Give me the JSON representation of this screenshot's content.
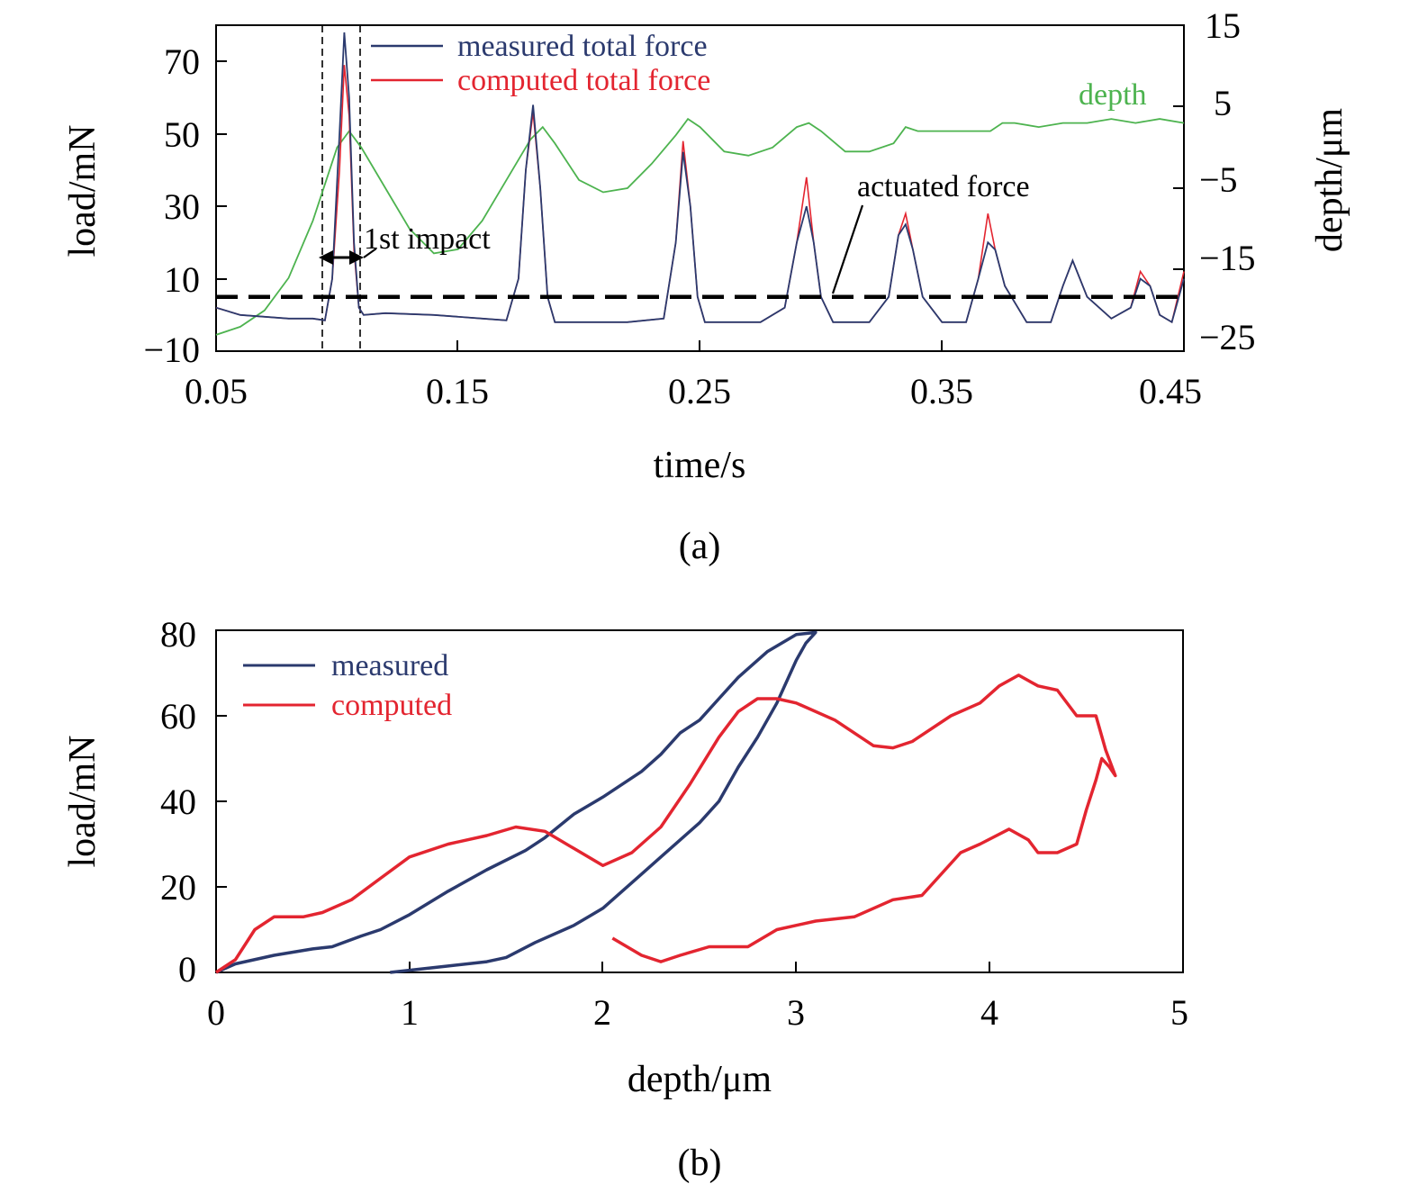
{
  "chart_data": [
    {
      "panel": "(a)",
      "type": "line",
      "xlabel": "time/s",
      "ylabel": "load/mN",
      "ylabel_right": "depth/μm",
      "xlim": [
        0.05,
        0.45
      ],
      "ylim": [
        -10,
        80
      ],
      "ylim_right": [
        -25,
        15
      ],
      "xticks": [
        0.05,
        0.15,
        0.25,
        0.35,
        0.45
      ],
      "xtick_labels": [
        "0.05",
        "0.15",
        "0.25",
        "0.35",
        "0.45"
      ],
      "yticks": [
        -10,
        10,
        30,
        50,
        70
      ],
      "ytick_labels": [
        "−10",
        "10",
        "30",
        "50",
        "70"
      ],
      "yticks_right": [
        -25,
        -15,
        -5,
        5,
        15
      ],
      "ytick_labels_right": [
        "−25",
        "−15",
        "−5",
        "5",
        "15"
      ],
      "legend_position": "top-center",
      "series": [
        {
          "name": "measured total force",
          "color": "#2b3a6e",
          "axis": "left",
          "x": [
            0.05,
            0.06,
            0.07,
            0.08,
            0.09,
            0.095,
            0.098,
            0.101,
            0.103,
            0.105,
            0.107,
            0.109,
            0.111,
            0.12,
            0.14,
            0.16,
            0.17,
            0.175,
            0.178,
            0.181,
            0.184,
            0.187,
            0.19,
            0.2,
            0.22,
            0.235,
            0.24,
            0.243,
            0.246,
            0.249,
            0.252,
            0.26,
            0.275,
            0.285,
            0.29,
            0.294,
            0.297,
            0.3,
            0.305,
            0.31,
            0.32,
            0.328,
            0.332,
            0.335,
            0.338,
            0.342,
            0.35,
            0.36,
            0.365,
            0.369,
            0.372,
            0.376,
            0.385,
            0.395,
            0.4,
            0.404,
            0.41,
            0.42,
            0.428,
            0.432,
            0.436,
            0.44,
            0.445,
            0.45
          ],
          "y": [
            2,
            0,
            -0.5,
            -1,
            -1,
            -1.5,
            10,
            50,
            78,
            60,
            20,
            2,
            0,
            0.5,
            0,
            -1,
            -1.5,
            10,
            40,
            58,
            35,
            5,
            -2,
            -2,
            -2,
            -1,
            20,
            45,
            30,
            5,
            -2,
            -2,
            -2,
            2,
            20,
            30,
            20,
            5,
            -2,
            -2,
            -2,
            5,
            22,
            25,
            18,
            5,
            -2,
            -2,
            10,
            20,
            18,
            8,
            -2,
            -2,
            8,
            15,
            5,
            -1,
            2,
            10,
            8,
            0,
            -2,
            10
          ]
        },
        {
          "name": "computed total force",
          "color": "#e32530",
          "axis": "left",
          "x": [
            0.05,
            0.06,
            0.07,
            0.08,
            0.09,
            0.095,
            0.098,
            0.101,
            0.103,
            0.105,
            0.107,
            0.109,
            0.111,
            0.12,
            0.14,
            0.16,
            0.17,
            0.175,
            0.178,
            0.181,
            0.184,
            0.187,
            0.19,
            0.2,
            0.22,
            0.235,
            0.24,
            0.243,
            0.246,
            0.249,
            0.252,
            0.26,
            0.275,
            0.285,
            0.29,
            0.294,
            0.297,
            0.3,
            0.305,
            0.31,
            0.32,
            0.328,
            0.332,
            0.335,
            0.338,
            0.342,
            0.35,
            0.36,
            0.365,
            0.369,
            0.372,
            0.376,
            0.385,
            0.395,
            0.4,
            0.404,
            0.41,
            0.42,
            0.428,
            0.432,
            0.436,
            0.44,
            0.445,
            0.45
          ],
          "y": [
            2,
            0,
            -0.5,
            -1,
            -1,
            -1.5,
            10,
            40,
            69,
            55,
            18,
            2,
            0,
            0.5,
            0,
            -1,
            -1.5,
            10,
            40,
            56,
            35,
            5,
            -2,
            -2,
            -2,
            -1,
            20,
            48,
            30,
            5,
            -2,
            -2,
            -2,
            2,
            20,
            38,
            20,
            5,
            -2,
            -2,
            -2,
            5,
            22,
            28,
            18,
            5,
            -2,
            -2,
            10,
            28,
            18,
            8,
            -2,
            -2,
            8,
            15,
            5,
            -1,
            2,
            12,
            8,
            0,
            -2,
            12
          ]
        },
        {
          "name": "depth",
          "color": "#4db34f",
          "axis": "right",
          "x": [
            0.05,
            0.06,
            0.07,
            0.08,
            0.09,
            0.1,
            0.105,
            0.11,
            0.12,
            0.13,
            0.14,
            0.15,
            0.16,
            0.17,
            0.18,
            0.185,
            0.19,
            0.2,
            0.21,
            0.22,
            0.23,
            0.24,
            0.245,
            0.25,
            0.26,
            0.27,
            0.28,
            0.29,
            0.295,
            0.3,
            0.31,
            0.32,
            0.33,
            0.335,
            0.34,
            0.35,
            0.36,
            0.37,
            0.375,
            0.38,
            0.39,
            0.4,
            0.41,
            0.42,
            0.43,
            0.44,
            0.45
          ],
          "y": [
            -23,
            -22,
            -20,
            -16,
            -9,
            0,
            2,
            0,
            -5,
            -10,
            -13,
            -12.5,
            -9,
            -4,
            1,
            2.5,
            0.5,
            -4,
            -5.5,
            -5,
            -2,
            1.5,
            3.5,
            2.5,
            -0.5,
            -1,
            0,
            2.5,
            3,
            2,
            -0.5,
            -0.5,
            0.5,
            2.5,
            2,
            2,
            2,
            2,
            3,
            3,
            2.5,
            3,
            3,
            3.5,
            3,
            3.5,
            3
          ]
        },
        {
          "name": "actuated force",
          "color": "#000000",
          "axis": "left",
          "style": "dashed",
          "x": [
            0.05,
            0.45
          ],
          "y": [
            5,
            5
          ]
        }
      ],
      "annotations": [
        "1st impact",
        "actuated force",
        "depth"
      ]
    },
    {
      "panel": "(b)",
      "type": "line",
      "xlabel": "depth/μm",
      "ylabel": "load/mN",
      "xlim": [
        0,
        5
      ],
      "ylim": [
        0,
        80
      ],
      "xticks": [
        0,
        1,
        2,
        3,
        4,
        5
      ],
      "xtick_labels": [
        "0",
        "1",
        "2",
        "3",
        "4",
        "5"
      ],
      "yticks": [
        0,
        20,
        40,
        60,
        80
      ],
      "ytick_labels": [
        "0",
        "20",
        "40",
        "60",
        "80"
      ],
      "legend_position": "top-left",
      "series": [
        {
          "name": "measured",
          "color": "#2b3a6e",
          "x": [
            0,
            0.1,
            0.3,
            0.5,
            0.6,
            0.75,
            0.85,
            1.0,
            1.2,
            1.4,
            1.6,
            1.7,
            1.85,
            2.0,
            2.2,
            2.3,
            2.4,
            2.5,
            2.6,
            2.7,
            2.75,
            2.85,
            3.0,
            3.1,
            3.05,
            3.0,
            2.9,
            2.8,
            2.7,
            2.6,
            2.5,
            2.4,
            2.3,
            2.2,
            2.0,
            1.85,
            1.65,
            1.5,
            1.4,
            1.2,
            1.0,
            0.9
          ],
          "y": [
            0,
            2,
            4,
            5.5,
            6,
            8.5,
            10,
            13.5,
            19,
            24,
            28.5,
            31.5,
            37,
            41,
            47,
            51,
            56,
            59,
            64,
            69,
            71,
            75,
            79,
            79.5,
            77,
            73,
            63,
            55,
            48,
            40,
            35,
            31,
            27,
            23,
            15,
            11,
            7,
            3.5,
            2.5,
            1.5,
            0.5,
            0
          ]
        },
        {
          "name": "computed",
          "color": "#e32530",
          "x": [
            0,
            0.1,
            0.2,
            0.3,
            0.45,
            0.55,
            0.7,
            0.85,
            1.0,
            1.2,
            1.4,
            1.55,
            1.7,
            1.85,
            2.0,
            2.15,
            2.3,
            2.45,
            2.6,
            2.7,
            2.8,
            2.9,
            3.0,
            3.2,
            3.4,
            3.5,
            3.6,
            3.8,
            3.95,
            4.05,
            4.15,
            4.25,
            4.35,
            4.45,
            4.55,
            4.6,
            4.65,
            4.62,
            4.58,
            4.55,
            4.5,
            4.45,
            4.35,
            4.25,
            4.2,
            4.1,
            3.95,
            3.85,
            3.65,
            3.5,
            3.3,
            3.1,
            2.9,
            2.75,
            2.55,
            2.4,
            2.3,
            2.2,
            2.05
          ],
          "y": [
            0,
            3,
            10,
            13,
            13,
            14,
            17,
            22,
            27,
            30,
            32,
            34,
            33,
            29,
            25,
            28,
            34,
            44,
            55,
            61,
            64,
            64,
            63,
            59,
            53,
            52.5,
            54,
            60,
            63,
            67,
            69.5,
            67,
            66,
            60,
            60,
            52,
            46,
            48,
            50,
            45,
            38,
            30,
            28,
            28,
            31,
            33.5,
            30,
            28,
            18,
            17,
            13,
            12,
            10,
            6,
            6,
            4,
            2.5,
            4,
            8
          ]
        }
      ]
    }
  ],
  "figure": {
    "panel_a_caption": "(a)",
    "panel_b_caption": "(b)",
    "annotation_first_impact": "1st impact",
    "annotation_actuated_force": "actuated force",
    "annotation_depth": "depth"
  }
}
